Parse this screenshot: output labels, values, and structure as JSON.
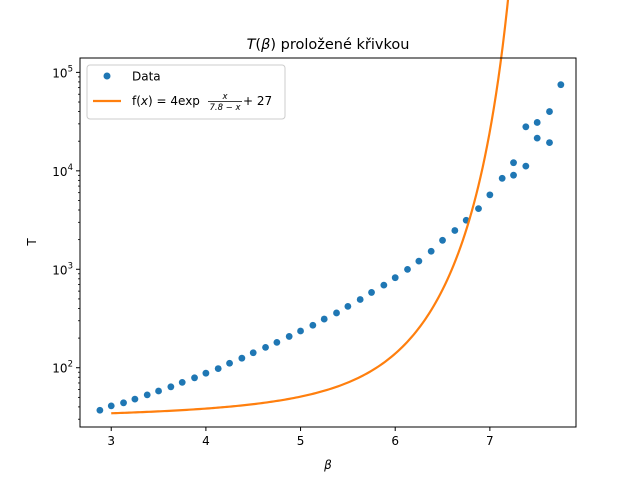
{
  "chart_data": {
    "type": "scatter",
    "title": "T(β) proložené křivkou",
    "title_parts": {
      "T": "T",
      "open": "(",
      "beta": "β",
      "close": ")",
      "rest": " proložené křivkou"
    },
    "xlabel": "β",
    "ylabel": "T",
    "x_ticks": [
      3,
      4,
      5,
      6,
      7
    ],
    "x_tick_labels": [
      "3",
      "4",
      "5",
      "6",
      "7"
    ],
    "xlim": [
      2.67,
      7.91
    ],
    "y_scale": "log",
    "ylim": [
      25,
      140000
    ],
    "y_ticks": [
      100,
      1000,
      10000,
      100000
    ],
    "y_tick_labels": [
      {
        "base": "10",
        "exp": "2"
      },
      {
        "base": "10",
        "exp": "3"
      },
      {
        "base": "10",
        "exp": "4"
      },
      {
        "base": "10",
        "exp": "5"
      }
    ],
    "grid": false,
    "legend_placement": "top-left",
    "colors": {
      "data": "#1f77b4",
      "fit": "#ff7f0e"
    },
    "series": [
      {
        "name": "Data",
        "kind": "scatter",
        "x": [
          2.88,
          3.0,
          3.13,
          3.25,
          3.38,
          3.5,
          3.63,
          3.75,
          3.88,
          4.0,
          4.13,
          4.25,
          4.38,
          4.5,
          4.63,
          4.75,
          4.88,
          5.0,
          5.13,
          5.25,
          5.38,
          5.5,
          5.63,
          5.75,
          5.88,
          6.0,
          6.13,
          6.25,
          6.38,
          6.5,
          6.63,
          6.75,
          6.88,
          7.0,
          7.13,
          7.25,
          7.38,
          7.5,
          7.63,
          7.75,
          7.25,
          7.38,
          7.5,
          7.63
        ],
        "y": [
          37,
          41,
          44,
          48,
          53,
          58,
          64,
          71,
          79,
          88,
          98,
          111,
          125,
          142,
          161,
          181,
          208,
          236,
          270,
          312,
          360,
          420,
          493,
          582,
          690,
          821,
          998,
          1211,
          1524,
          1970,
          2478,
          3147,
          4130,
          5704,
          8400,
          9036,
          11172,
          21500,
          19360,
          75000,
          12100,
          28000,
          31000,
          40000
        ]
      },
      {
        "name": "f(x) = 4exp x/(7.8−x) + 27",
        "kind": "line",
        "x_range": [
          3.0,
          7.7
        ]
      }
    ],
    "legend": {
      "data_label": "Data",
      "fit_prefix": "f(",
      "fit_var": "x",
      "fit_mid": ") = 4exp",
      "fit_num": "x",
      "fit_den": "7.8 − x",
      "fit_suffix": " + 27"
    }
  }
}
